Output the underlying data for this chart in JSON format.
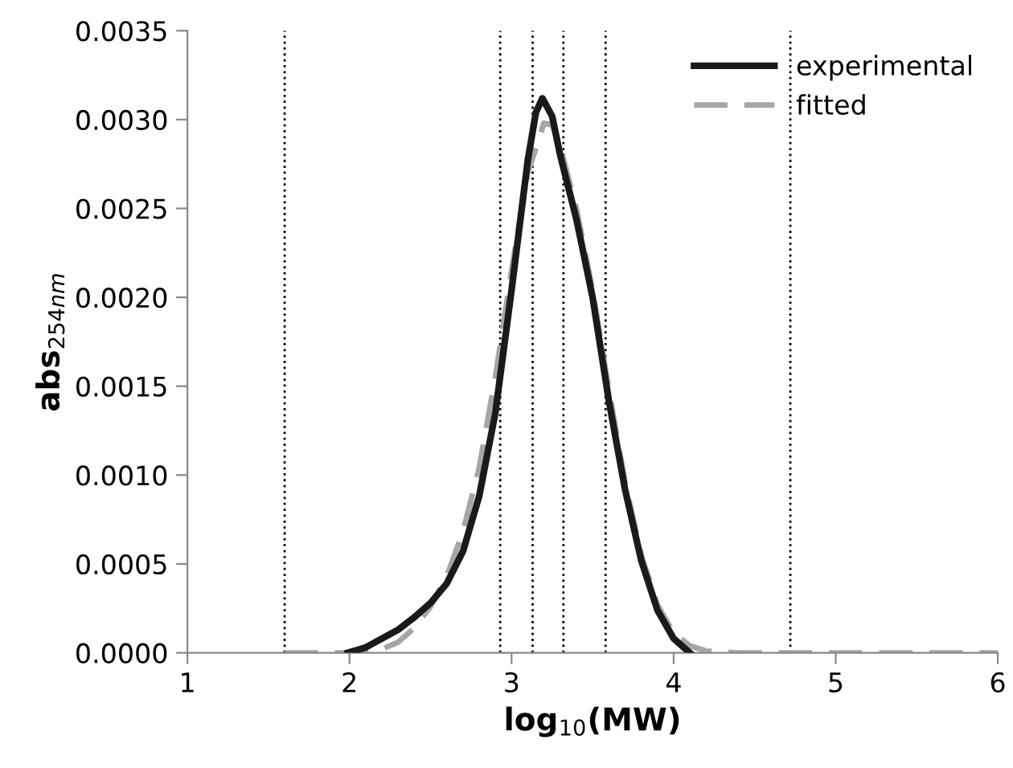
{
  "chart_data": {
    "type": "line",
    "xlabel": "log$_{10}$(MW)",
    "ylabel": "abs$_{254nm}$",
    "xlim": [
      1,
      6
    ],
    "xticks": [
      1,
      2,
      3,
      4,
      5,
      6
    ],
    "ylim": [
      0,
      0.0035
    ],
    "yticks": [
      {
        "value": 0,
        "label": "0.0000"
      },
      {
        "value": 0.0005,
        "label": "0.0005"
      },
      {
        "value": 0.001,
        "label": "0.0010"
      },
      {
        "value": 0.0015,
        "label": "0.0015"
      },
      {
        "value": 0.002,
        "label": "0.0020"
      },
      {
        "value": 0.0025,
        "label": "0.0025"
      },
      {
        "value": 0.003,
        "label": "0.0030"
      },
      {
        "value": 0.0035,
        "label": "0.0035"
      }
    ],
    "grid": false,
    "legend": "top right",
    "series": [
      {
        "name": "experimental",
        "color": "#1a1a1a",
        "line_style": "solid",
        "x": [
          1.99,
          2.1,
          2.2,
          2.3,
          2.4,
          2.5,
          2.6,
          2.7,
          2.8,
          2.9,
          3.0,
          3.1,
          3.15,
          3.19,
          3.25,
          3.3,
          3.4,
          3.5,
          3.6,
          3.7,
          3.8,
          3.9,
          4.0,
          4.1
        ],
        "values": [
          0,
          3e-05,
          8e-05,
          0.00013,
          0.0002,
          0.00028,
          0.00039,
          0.00057,
          0.00088,
          0.00135,
          0.00204,
          0.00277,
          0.00304,
          0.00312,
          0.00302,
          0.0028,
          0.00244,
          0.002,
          0.00142,
          0.00092,
          0.00052,
          0.00024,
          8e-05,
          0
        ]
      },
      {
        "name": "fitted",
        "color": "#a6a6a6",
        "line_style": "dashed",
        "x": [
          1.6,
          2.0,
          2.2,
          2.3,
          2.4,
          2.5,
          2.6,
          2.7,
          2.8,
          2.9,
          3.0,
          3.1,
          3.2,
          3.25,
          3.3,
          3.4,
          3.5,
          3.6,
          3.7,
          3.8,
          3.9,
          4.0,
          4.1,
          4.2,
          4.4,
          6.0
        ],
        "values": [
          0,
          0,
          2e-05,
          6e-05,
          0.00014,
          0.00026,
          0.00043,
          0.00068,
          0.00104,
          0.00155,
          0.00215,
          0.0027,
          0.00298,
          0.00297,
          0.00285,
          0.0025,
          0.00204,
          0.00148,
          0.00096,
          0.00055,
          0.00027,
          0.00011,
          4e-05,
          1e-05,
          0,
          0
        ]
      }
    ],
    "ref_lines": [
      {
        "axis": "x",
        "value": 1.6,
        "color": "#000000",
        "line_style": "dotted"
      },
      {
        "axis": "x",
        "value": 2.93,
        "color": "#000000",
        "line_style": "dotted"
      },
      {
        "axis": "x",
        "value": 3.13,
        "color": "#000000",
        "line_style": "dotted"
      },
      {
        "axis": "x",
        "value": 3.32,
        "color": "#000000",
        "line_style": "dotted"
      },
      {
        "axis": "x",
        "value": 3.58,
        "color": "#000000",
        "line_style": "dotted"
      },
      {
        "axis": "x",
        "value": 4.72,
        "color": "#000000",
        "line_style": "dotted"
      }
    ]
  }
}
